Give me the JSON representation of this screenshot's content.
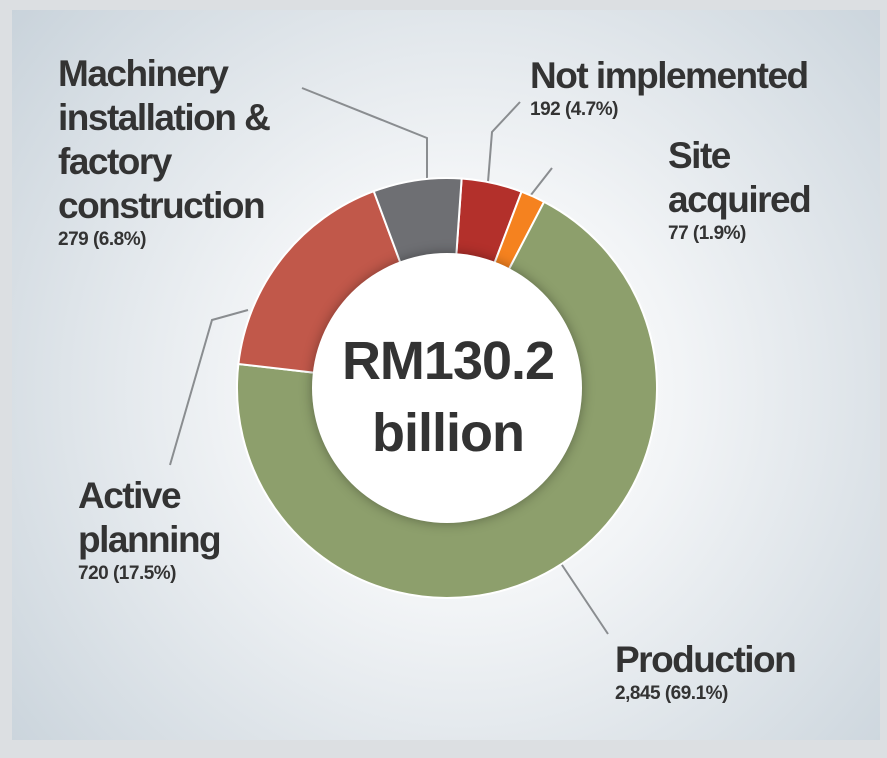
{
  "chart_data": {
    "type": "donut",
    "center_label": "RM130.2 billion",
    "categories": [
      "Not implemented",
      "Site acquired",
      "Production",
      "Active planning",
      "Machinery installation & factory construction"
    ],
    "values": [
      192,
      77,
      2845,
      720,
      279
    ],
    "value_labels": [
      "192 (4.7%)",
      "77 (1.9%)",
      "2,845 (69.1%)",
      "720 (17.5%)",
      "279 (6.8%)"
    ],
    "colors": [
      "#b3302b",
      "#f5821f",
      "#8d9f6c",
      "#c1584a",
      "#6e6f73"
    ]
  }
}
